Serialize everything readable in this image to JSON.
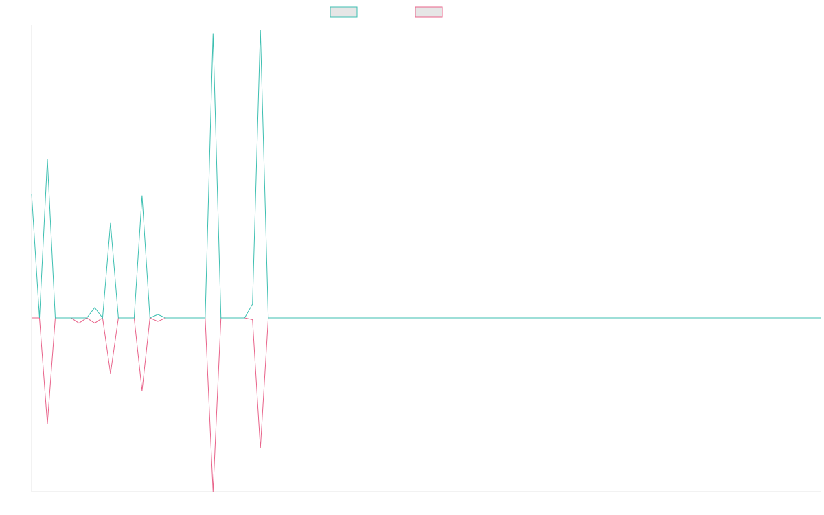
{
  "chart_data": {
    "type": "line",
    "title": "",
    "xlabel": "",
    "ylabel": "",
    "grid": false,
    "legend_position": "top-center",
    "point_count": 101,
    "ylim": [
      -100,
      170
    ],
    "series": [
      {
        "color": "#3dbfb1",
        "swatch_fill": "#e6e6e6",
        "values": [
          72,
          0,
          92,
          0,
          0,
          0,
          0,
          0,
          6,
          0,
          55,
          0,
          0,
          0,
          71,
          0,
          2,
          0,
          0,
          0,
          0,
          0,
          0,
          165,
          0,
          0,
          0,
          0,
          8,
          167,
          0,
          0,
          0,
          0,
          0,
          0,
          0,
          0,
          0,
          0,
          0,
          0,
          0,
          0,
          0,
          0,
          0,
          0,
          0,
          0,
          0,
          0,
          0,
          0,
          0,
          0,
          0,
          0,
          0,
          0,
          0,
          0,
          0,
          0,
          0,
          0,
          0,
          0,
          0,
          0,
          0,
          0,
          0,
          0,
          0,
          0,
          0,
          0,
          0,
          0,
          0,
          0,
          0,
          0,
          0,
          0,
          0,
          0,
          0,
          0,
          0,
          0,
          0,
          0,
          0,
          0,
          0,
          0,
          0,
          0,
          0
        ]
      },
      {
        "color": "#e8638a",
        "swatch_fill": "#e6e6e6",
        "values": [
          0,
          0,
          -61,
          0,
          0,
          0,
          -3,
          0,
          -3,
          0,
          -32,
          0,
          0,
          0,
          -42,
          0,
          -2,
          0,
          0,
          0,
          0,
          0,
          0,
          -100,
          0,
          0,
          0,
          0,
          -1,
          -75,
          0,
          0,
          0,
          0,
          0,
          0,
          0,
          0,
          0,
          0,
          0,
          0,
          0,
          0,
          0,
          0,
          0,
          0,
          0,
          0,
          0,
          0,
          0,
          0,
          0,
          0,
          0,
          0,
          0,
          0,
          0,
          0,
          0,
          0,
          0,
          0,
          0,
          0,
          0,
          0,
          0,
          0,
          0,
          0,
          0,
          0,
          0,
          0,
          0,
          0,
          0,
          0,
          0,
          0,
          0,
          0,
          0,
          0,
          0,
          0,
          0,
          0,
          0,
          0,
          0,
          0,
          0,
          0,
          0,
          0,
          0
        ]
      }
    ]
  }
}
